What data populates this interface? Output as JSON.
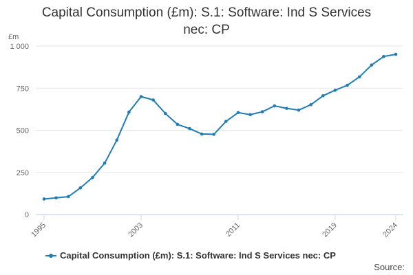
{
  "colors": {
    "series": "#1f7cb6",
    "grid": "#e6e6e6",
    "axis": "#ccd6eb",
    "tick_text": "#666666"
  },
  "source_label": "Source:",
  "chart_data": {
    "type": "line",
    "title": "Capital Consumption (£m): S.1: Software: Ind S Services nec: CP",
    "title_lines": [
      "Capital Consumption (£m): S.1: Software: Ind S Services",
      "nec: CP"
    ],
    "ylabel": "£m",
    "xlabel": "",
    "ylim": [
      0,
      1000
    ],
    "yticks": [
      0,
      250,
      500,
      750,
      1000
    ],
    "ytick_labels": [
      "0",
      "250",
      "500",
      "750",
      "1 000"
    ],
    "xlim": [
      1995,
      2024
    ],
    "xticks": [
      1995,
      2003,
      2011,
      2019,
      2024
    ],
    "xtick_labels": [
      "1995",
      "2003",
      "2011",
      "2019",
      "2024"
    ],
    "grid": true,
    "legend_position": "bottom",
    "series": [
      {
        "name": "Capital Consumption (£m): S.1: Software: Ind S Services nec: CP",
        "x": [
          1995,
          1996,
          1997,
          1998,
          1999,
          2000,
          2001,
          2002,
          2003,
          2004,
          2005,
          2006,
          2007,
          2008,
          2009,
          2010,
          2011,
          2012,
          2013,
          2014,
          2015,
          2016,
          2017,
          2018,
          2019,
          2020,
          2021,
          2022,
          2023,
          2024
        ],
        "values": [
          92,
          99,
          106,
          158,
          220,
          305,
          442,
          608,
          700,
          680,
          600,
          535,
          510,
          478,
          476,
          553,
          605,
          593,
          610,
          645,
          630,
          620,
          652,
          705,
          738,
          767,
          817,
          887,
          938,
          951
        ]
      }
    ]
  }
}
